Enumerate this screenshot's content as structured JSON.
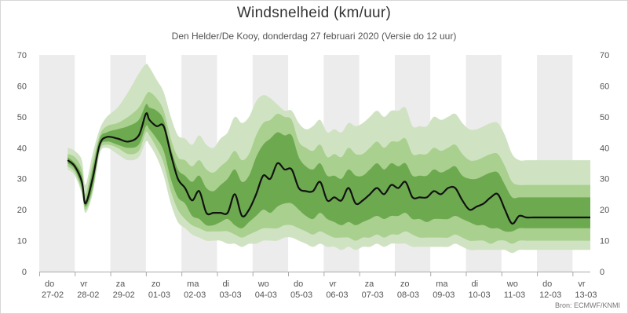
{
  "title": "Windsnelheid (km/uur)",
  "subtitle": "Den Helder/De Kooy, donderdag 27 februari 2020 (Versie do 12 uur)",
  "source": "Bron: ECMWF/KNMI",
  "colors": {
    "background": "#ffffff",
    "alt_day_band": "#ececec",
    "band_outer": "#cfe3c2",
    "band_middle": "#a9d08f",
    "band_inner": "#6daa4f",
    "median_line": "#111111"
  },
  "chart_data": {
    "type": "area",
    "title": "Windsnelheid (km/uur)",
    "subtitle": "Den Helder/De Kooy, donderdag 27 februari 2020 (Versie do 12 uur)",
    "ylim": [
      0,
      70
    ],
    "y_ticks": [
      0,
      10,
      20,
      30,
      40,
      50,
      60,
      70
    ],
    "y_axis_right": true,
    "grid": false,
    "x_unit": "days since 27-02 00:00",
    "xlim": [
      0,
      15.5
    ],
    "day_labels": [
      {
        "day": "do",
        "date": "27-02"
      },
      {
        "day": "vr",
        "date": "28-02"
      },
      {
        "day": "za",
        "date": "29-02"
      },
      {
        "day": "zo",
        "date": "01-03"
      },
      {
        "day": "ma",
        "date": "02-03"
      },
      {
        "day": "di",
        "date": "03-03"
      },
      {
        "day": "wo",
        "date": "04-03"
      },
      {
        "day": "do",
        "date": "05-03"
      },
      {
        "day": "vr",
        "date": "06-03"
      },
      {
        "day": "za",
        "date": "07-03"
      },
      {
        "day": "zo",
        "date": "08-03"
      },
      {
        "day": "ma",
        "date": "09-03"
      },
      {
        "day": "di",
        "date": "10-03"
      },
      {
        "day": "wo",
        "date": "11-03"
      },
      {
        "day": "do",
        "date": "12-03"
      },
      {
        "day": "vr",
        "date": "13-03"
      }
    ],
    "x": [
      0.8,
      1.0,
      1.2,
      1.3,
      1.5,
      1.7,
      1.9,
      2.2,
      2.5,
      2.8,
      3.0,
      3.1,
      3.3,
      3.5,
      3.7,
      3.9,
      4.1,
      4.3,
      4.5,
      4.7,
      4.9,
      5.1,
      5.3,
      5.5,
      5.7,
      5.9,
      6.1,
      6.3,
      6.5,
      6.7,
      6.9,
      7.1,
      7.3,
      7.5,
      7.7,
      7.9,
      8.1,
      8.3,
      8.5,
      8.7,
      8.9,
      9.1,
      9.3,
      9.5,
      9.7,
      9.9,
      10.1,
      10.3,
      10.5,
      10.7,
      10.9,
      11.1,
      11.3,
      11.5,
      11.7,
      11.9,
      12.1,
      12.3,
      12.5,
      12.7,
      12.9,
      13.1,
      13.3,
      13.5,
      13.7,
      13.9,
      14.1,
      14.3,
      14.5,
      14.7,
      14.9,
      15.1,
      15.3,
      15.5
    ],
    "series": [
      {
        "name": "",
        "role": "median",
        "values": [
          36,
          34,
          29,
          22,
          30,
          41,
          43.5,
          43,
          42,
          44,
          51,
          49,
          47,
          47,
          38,
          30,
          27,
          23,
          26,
          19,
          19,
          19,
          19,
          25,
          18,
          20,
          25,
          31,
          30,
          35,
          33,
          33,
          27,
          26,
          26,
          29,
          23,
          24,
          23,
          27,
          22,
          23,
          25,
          27,
          25,
          28,
          27,
          29,
          24,
          24,
          24,
          26,
          25,
          27,
          27,
          23,
          20,
          21,
          22,
          24,
          25,
          20,
          15.5,
          18,
          17.5,
          17.5,
          17.5,
          17.5,
          17.5,
          17.5,
          17.5,
          17.5,
          17.5,
          17.5
        ]
      },
      {
        "name": "",
        "role": "inner_band",
        "lower": [
          35,
          33,
          27,
          21,
          27,
          40,
          42,
          41,
          40,
          41,
          47,
          46,
          43,
          39,
          30,
          24,
          22,
          18,
          17,
          15,
          15,
          16,
          17,
          15,
          14,
          16,
          18,
          20,
          19,
          21,
          22,
          22,
          20,
          18,
          17,
          19,
          17,
          16,
          15,
          16,
          15,
          16,
          17,
          18,
          17,
          18,
          18,
          19,
          17,
          17,
          16,
          17,
          17,
          17,
          18,
          17,
          16,
          15,
          15,
          14,
          14,
          13,
          13,
          14,
          14,
          14,
          14,
          14,
          14,
          14,
          14,
          14,
          14,
          14
        ],
        "upper": [
          37,
          35,
          31,
          23,
          33,
          43,
          45,
          46,
          47,
          49,
          54,
          53,
          52,
          49,
          40,
          33,
          31,
          29,
          31,
          27,
          26,
          28,
          30,
          33,
          29,
          31,
          37,
          41,
          43,
          45,
          44,
          44,
          37,
          34,
          33,
          35,
          31,
          31,
          30,
          33,
          31,
          31,
          33,
          35,
          33,
          35,
          34,
          35,
          31,
          31,
          31,
          33,
          32,
          33,
          34,
          31,
          30,
          30,
          31,
          32,
          32,
          28,
          24,
          24,
          24,
          24,
          24,
          24,
          24,
          24,
          24,
          24,
          24,
          24
        ]
      },
      {
        "name": "",
        "role": "middle_band",
        "lower": [
          34,
          32,
          26,
          20,
          26,
          39,
          41,
          40,
          38,
          39,
          45,
          44,
          40,
          35,
          26,
          20,
          17,
          15,
          14,
          13,
          13,
          13,
          13,
          12,
          11,
          12,
          13,
          14,
          14,
          14,
          15,
          15,
          14,
          13,
          12,
          13,
          12,
          11,
          11,
          11,
          10,
          11,
          11,
          12,
          11,
          12,
          12,
          13,
          12,
          11,
          11,
          11,
          11,
          11,
          12,
          11,
          10,
          10,
          10,
          9,
          10,
          10,
          9,
          10,
          10,
          10,
          10,
          10,
          10,
          10,
          10,
          10,
          10,
          10
        ],
        "upper": [
          38,
          37,
          33,
          25,
          35,
          44,
          47,
          48,
          50,
          53,
          57,
          58,
          56,
          52,
          43,
          37,
          36,
          34,
          36,
          33,
          32,
          34,
          36,
          39,
          36,
          38,
          44,
          48,
          49,
          51,
          50,
          49,
          42,
          40,
          39,
          41,
          37,
          38,
          37,
          40,
          38,
          38,
          40,
          42,
          40,
          42,
          42,
          43,
          38,
          38,
          38,
          40,
          39,
          40,
          41,
          38,
          36,
          36,
          37,
          38,
          38,
          34,
          29,
          28,
          28,
          28,
          28,
          28,
          28,
          28,
          28,
          28,
          28,
          28
        ]
      },
      {
        "name": "",
        "role": "outer_band",
        "lower": [
          33,
          31,
          25,
          19,
          25,
          38,
          40,
          38,
          36,
          37,
          42,
          41,
          37,
          31,
          22,
          16,
          14,
          12,
          11,
          10,
          10,
          10,
          9,
          9,
          8,
          9,
          9,
          10,
          10,
          10,
          11,
          11,
          10,
          9,
          8,
          9,
          8,
          8,
          7,
          8,
          7,
          8,
          8,
          9,
          8,
          9,
          9,
          9,
          8,
          8,
          8,
          8,
          8,
          8,
          9,
          8,
          7,
          7,
          7,
          7,
          7,
          7,
          6,
          7,
          7,
          7,
          7,
          7,
          7,
          7,
          7,
          7,
          7,
          7
        ],
        "upper": [
          40,
          39,
          36,
          28,
          38,
          46,
          50,
          53,
          58,
          64,
          67,
          66,
          62,
          58,
          50,
          44,
          43,
          41,
          44,
          41,
          40,
          43,
          45,
          50,
          48,
          50,
          55,
          57,
          56,
          54,
          52,
          52,
          48,
          46,
          47,
          49,
          45,
          46,
          45,
          48,
          47,
          48,
          50,
          52,
          50,
          52,
          52,
          53,
          47,
          47,
          47,
          50,
          49,
          50,
          51,
          48,
          46,
          46,
          47,
          48,
          48,
          44,
          38,
          36,
          36,
          36,
          36,
          36,
          36,
          36,
          36,
          36,
          36,
          36
        ]
      }
    ]
  }
}
